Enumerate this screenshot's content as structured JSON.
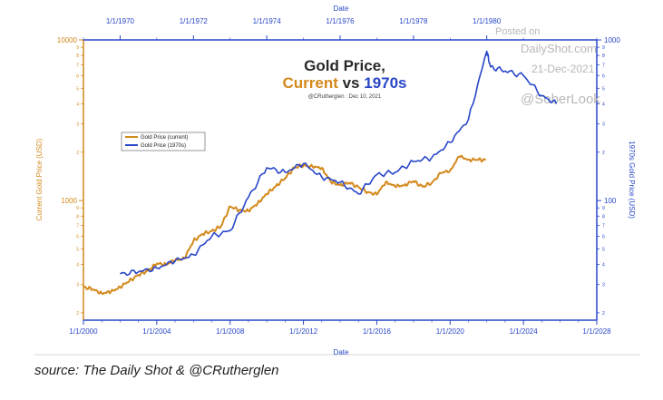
{
  "source_text": "source: The Daily Shot & @CRutherglen",
  "watermark": {
    "line1": "Posted on",
    "line2": "DailyShot.com",
    "line3": "21-Dec-2021",
    "line4": "@SoberLook"
  },
  "chart_data": {
    "type": "line",
    "title_line1": "Gold Price,",
    "title_current": "Current",
    "title_vs": " vs ",
    "title_1970s": "1970s",
    "subtitle": "@CRutherglen : Dec 10, 2021",
    "x_bottom_label": "Date",
    "x_top_label": "Date",
    "y_left_label": "Current Gold Price (USD)",
    "y_right_label": "1970s Gold Price (USD)",
    "bottom_ticks": [
      "1/1/2000",
      "1/1/2004",
      "1/1/2008",
      "1/1/2012",
      "1/1/2016",
      "1/1/2020",
      "1/1/2024",
      "1/1/2028"
    ],
    "bottom_xlim": [
      2000,
      2028
    ],
    "top_ticks": [
      "1/1/1970",
      "1/1/1972",
      "1/1/1974",
      "1/1/1976",
      "1/1/1978",
      "1/1/1980"
    ],
    "top_xlim": [
      1969,
      1983
    ],
    "left_scale": "log",
    "left_ylim": [
      180,
      10000
    ],
    "left_labeled_ticks": [
      1000,
      10000
    ],
    "right_scale": "log",
    "right_ylim": [
      18,
      1000
    ],
    "right_labeled_ticks": [
      100,
      1000
    ],
    "grid": false,
    "legend_position": "upper-left",
    "series": [
      {
        "name": "Gold Price (current)",
        "color": "#d4891c",
        "axis": "left",
        "x": [
          2000,
          2000.5,
          2001,
          2001.5,
          2002,
          2002.5,
          2003,
          2003.5,
          2004,
          2004.5,
          2005,
          2005.5,
          2006,
          2006.5,
          2007,
          2007.5,
          2008,
          2008.5,
          2009,
          2009.5,
          2010,
          2010.5,
          2011,
          2011.5,
          2012,
          2012.5,
          2013,
          2013.5,
          2014,
          2014.5,
          2015,
          2015.5,
          2016,
          2016.5,
          2017,
          2017.5,
          2018,
          2018.5,
          2019,
          2019.5,
          2020,
          2020.5,
          2021,
          2021.5,
          2021.95
        ],
        "y": [
          290,
          280,
          265,
          270,
          290,
          315,
          345,
          365,
          405,
          400,
          425,
          435,
          560,
          620,
          645,
          690,
          920,
          870,
          860,
          960,
          1100,
          1230,
          1380,
          1600,
          1660,
          1620,
          1600,
          1300,
          1250,
          1290,
          1210,
          1130,
          1090,
          1310,
          1220,
          1250,
          1320,
          1220,
          1290,
          1480,
          1540,
          1880,
          1800,
          1790,
          1790
        ]
      },
      {
        "name": "Gold Price (1970s)",
        "color": "#2846c8",
        "axis": "right",
        "x": [
          1970,
          1970.5,
          1971,
          1971.5,
          1972,
          1972.5,
          1973,
          1973.5,
          1974,
          1974.5,
          1975,
          1975.5,
          1976,
          1976.5,
          1977,
          1977.5,
          1978,
          1978.5,
          1979,
          1979.5,
          1980,
          1980.1,
          1980.5,
          1981,
          1981.5,
          1981.9
        ],
        "y": [
          35,
          36,
          38,
          42,
          46,
          60,
          65,
          105,
          160,
          150,
          170,
          140,
          130,
          110,
          145,
          150,
          175,
          185,
          230,
          320,
          850,
          680,
          640,
          600,
          450,
          400
        ]
      }
    ]
  }
}
